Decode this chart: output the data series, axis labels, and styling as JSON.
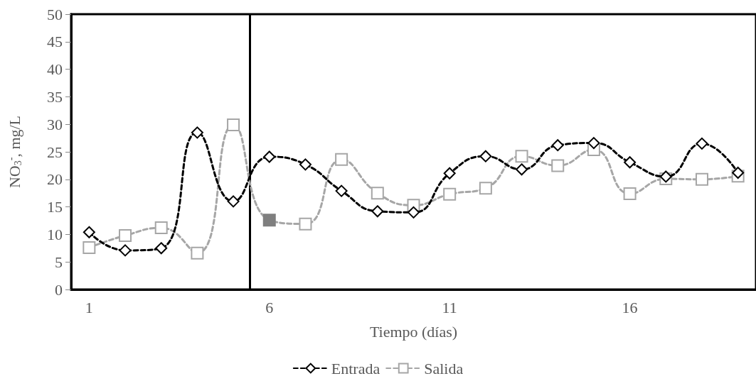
{
  "chart_data": {
    "type": "line",
    "xlabel": "Tiempo (días)",
    "ylabel": "NO$_{3}$$^{-}$, mg/L",
    "x": [
      1,
      2,
      3,
      4,
      5,
      6,
      7,
      8,
      9,
      10,
      11,
      12,
      13,
      14,
      15,
      16,
      17,
      18,
      19
    ],
    "xlim": [
      0.5,
      19.5
    ],
    "xticks": [
      1,
      6,
      11,
      16
    ],
    "ylim": [
      0,
      50
    ],
    "yticks": [
      0,
      5,
      10,
      15,
      20,
      25,
      30,
      35,
      40,
      45,
      50
    ],
    "grid": false,
    "legend": "bottom",
    "ref_lines": [
      {
        "axis": "x",
        "value": 5.45,
        "color": "#000000",
        "line_style": "solid"
      }
    ],
    "series": [
      {
        "name": "Entrada",
        "color": "#000000",
        "marker": "diamond",
        "line_style": "dashed",
        "values": [
          10.4,
          7.1,
          7.5,
          28.5,
          16.0,
          24.1,
          22.7,
          17.9,
          14.2,
          14.0,
          21.1,
          24.2,
          21.8,
          26.2,
          26.6,
          23.1,
          20.5,
          26.5,
          21.2
        ]
      },
      {
        "name": "Salida",
        "color": "#a6a6a6",
        "marker": "square",
        "line_style": "dashed",
        "values": [
          7.6,
          9.8,
          11.2,
          6.6,
          29.9,
          12.6,
          11.9,
          23.6,
          17.5,
          15.3,
          17.3,
          18.4,
          24.2,
          22.5,
          25.4,
          17.4,
          20.1,
          20.0,
          20.6
        ],
        "colors": [
          "#a6a6a6",
          "#a6a6a6",
          "#a6a6a6",
          "#a6a6a6",
          "#a6a6a6",
          "#7f7f7f",
          "#a6a6a6",
          "#a6a6a6",
          "#a6a6a6",
          "#a6a6a6",
          "#a6a6a6",
          "#a6a6a6",
          "#a6a6a6",
          "#a6a6a6",
          "#a6a6a6",
          "#a6a6a6",
          "#a6a6a6",
          "#a6a6a6",
          "#a6a6a6"
        ]
      }
    ]
  }
}
